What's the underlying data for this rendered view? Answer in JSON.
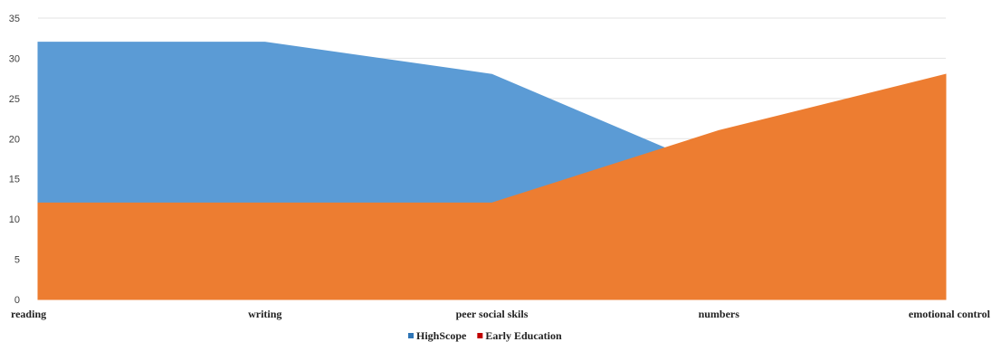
{
  "chart_data": {
    "type": "area",
    "categories": [
      "reading",
      "writing",
      "peer social skils",
      "numbers",
      "emotional control"
    ],
    "series": [
      {
        "name": "HighScope",
        "values": [
          32,
          32,
          28,
          16,
          18
        ],
        "color": "#5b9bd5"
      },
      {
        "name": "Early Education",
        "values": [
          12,
          12,
          12,
          21,
          28
        ],
        "color": "#ed7d31"
      }
    ],
    "ylim": [
      0,
      35
    ],
    "yticks": [
      "0",
      "5",
      "10",
      "15",
      "20",
      "25",
      "30",
      "35"
    ],
    "grid": true,
    "legend": "bottom",
    "legend_swatch_colors": [
      "#2e75b6",
      "#c00000"
    ]
  }
}
